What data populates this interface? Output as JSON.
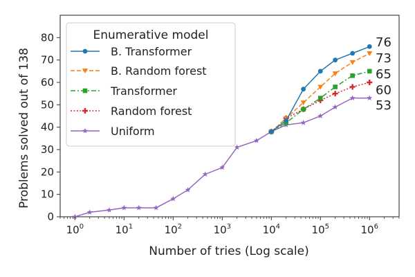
{
  "chart_data": {
    "type": "line",
    "xlabel": "Number of tries (Log scale)",
    "ylabel": "Problems solved out of 138",
    "x_scale": "log",
    "xlim": [
      0.5,
      4000000
    ],
    "ylim": [
      0,
      90
    ],
    "y_ticks": [
      0,
      10,
      20,
      30,
      40,
      50,
      60,
      70,
      80
    ],
    "x_ticks": [
      {
        "value": 1,
        "base": "10",
        "exp": "0"
      },
      {
        "value": 10,
        "base": "10",
        "exp": "1"
      },
      {
        "value": 100,
        "base": "10",
        "exp": "2"
      },
      {
        "value": 1000,
        "base": "10",
        "exp": "3"
      },
      {
        "value": 10000,
        "base": "10",
        "exp": "4"
      },
      {
        "value": 100000,
        "base": "10",
        "exp": "5"
      },
      {
        "value": 1000000,
        "base": "10",
        "exp": "6"
      }
    ],
    "legend_title": "Enumerative model",
    "legend_position": "top-left",
    "series": [
      {
        "name": "B. Transformer",
        "color": "#1f77b4",
        "dash": "solid",
        "marker": "circle",
        "end_label": "76",
        "x": [
          10000,
          20000,
          45000,
          100000,
          200000,
          450000,
          1000000
        ],
        "y": [
          38,
          43,
          57,
          65,
          70,
          73,
          76
        ]
      },
      {
        "name": "B. Random forest",
        "color": "#ff7f0e",
        "dash": "dashed",
        "marker": "triangle-down",
        "end_label": "73",
        "x": [
          10000,
          20000,
          45000,
          100000,
          200000,
          450000,
          1000000
        ],
        "y": [
          38,
          44,
          51,
          58,
          64,
          69,
          73
        ]
      },
      {
        "name": "Transformer",
        "color": "#2ca02c",
        "dash": "dashdot",
        "marker": "square",
        "end_label": "65",
        "x": [
          10000,
          20000,
          45000,
          100000,
          200000,
          450000,
          1000000
        ],
        "y": [
          38,
          42,
          48,
          53,
          58,
          63,
          65
        ]
      },
      {
        "name": "Random forest",
        "color": "#d62728",
        "dash": "dotted",
        "marker": "plus",
        "end_label": "60",
        "x": [
          10000,
          20000,
          45000,
          100000,
          200000,
          450000,
          1000000
        ],
        "y": [
          38,
          44,
          48,
          52,
          55,
          58,
          60
        ]
      },
      {
        "name": "Uniform",
        "color": "#9467bd",
        "dash": "solid",
        "marker": "star",
        "end_label": "53",
        "x": [
          1,
          2,
          5,
          10,
          20,
          45,
          100,
          200,
          450,
          1000,
          2000,
          5000,
          10000,
          20000,
          45000,
          100000,
          200000,
          450000,
          1000000
        ],
        "y": [
          0,
          2,
          3,
          4,
          4,
          4,
          8,
          12,
          19,
          22,
          31,
          34,
          38,
          41,
          42,
          45,
          49,
          53,
          53
        ]
      }
    ]
  }
}
